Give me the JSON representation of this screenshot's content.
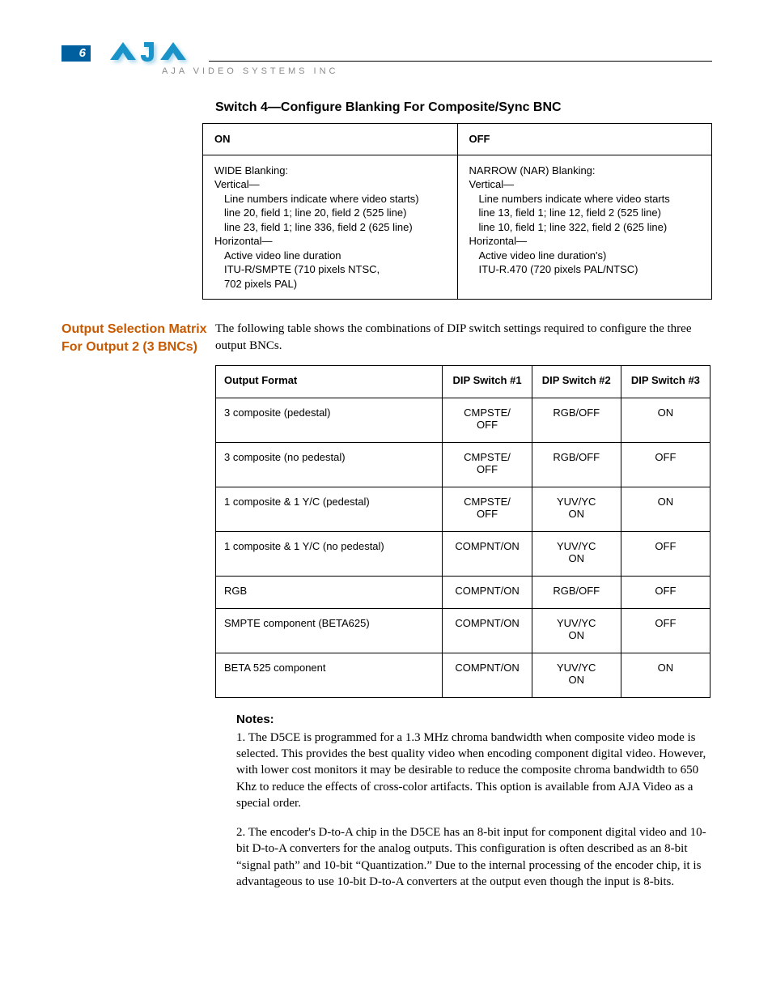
{
  "page_number": "6",
  "logo_tagline": "AJA VIDEO SYSTEMS INC",
  "logo_color": "#1a93c8",
  "section1": {
    "title": "Switch 4—Configure Blanking For Composite/Sync BNC",
    "headers": [
      "ON",
      "OFF"
    ],
    "on": {
      "l1": "WIDE Blanking:",
      "l2": "Vertical—",
      "l3": "Line numbers indicate where video starts)",
      "l4": "line 20, field 1; line 20, field 2 (525 line)",
      "l5": "line 23, field 1; line 336, field 2 (625 line)",
      "l6": "Horizontal—",
      "l7": "Active video line duration",
      "l8": "ITU-R/SMPTE (710 pixels NTSC,",
      "l9": "702 pixels PAL)"
    },
    "off": {
      "l1": "NARROW (NAR) Blanking:",
      "l2": "Vertical—",
      "l3": "Line numbers indicate where video starts",
      "l4": "line 13, field 1; line 12, field 2 (525 line)",
      "l5": "line 10, field 1; line 322, field 2 (625 line)",
      "l6": "Horizontal—",
      "l7": "Active video line duration's)",
      "l8": "ITU-R.470 (720 pixels PAL/NTSC)"
    }
  },
  "section2": {
    "side_heading": "Output Selection Matrix For Output 2 (3 BNCs)",
    "intro": "The following table shows the combinations of DIP switch settings required to configure the three output BNCs.",
    "headers": [
      "Output Format",
      "DIP Switch #1",
      "DIP Switch #2",
      "DIP Switch #3"
    ],
    "rows": [
      {
        "fmt": "3 composite (pedestal)",
        "s1a": "CMPSTE/",
        "s1b": "OFF",
        "s2a": "RGB/OFF",
        "s2b": "",
        "s3": "ON"
      },
      {
        "fmt": "3 composite (no pedestal)",
        "s1a": "CMPSTE/",
        "s1b": "OFF",
        "s2a": "RGB/OFF",
        "s2b": "",
        "s3": "OFF"
      },
      {
        "fmt": "1 composite & 1 Y/C (pedestal)",
        "s1a": "CMPSTE/",
        "s1b": "OFF",
        "s2a": "YUV/YC",
        "s2b": "ON",
        "s3": "ON"
      },
      {
        "fmt": "1 composite & 1 Y/C (no pedestal)",
        "s1a": "COMPNT/ON",
        "s1b": "",
        "s2a": "YUV/YC",
        "s2b": "ON",
        "s3": "OFF"
      },
      {
        "fmt": "RGB",
        "s1a": "COMPNT/ON",
        "s1b": "",
        "s2a": "RGB/OFF",
        "s2b": "",
        "s3": "OFF"
      },
      {
        "fmt": "SMPTE component (BETA625)",
        "s1a": "COMPNT/ON",
        "s1b": "",
        "s2a": "YUV/YC",
        "s2b": "ON",
        "s3": "OFF"
      },
      {
        "fmt": "BETA 525 component",
        "s1a": "COMPNT/ON",
        "s1b": "",
        "s2a": "YUV/YC",
        "s2b": "ON",
        "s3": "ON"
      }
    ]
  },
  "notes": {
    "title": "Notes:",
    "n1": "1. The D5CE is programmed for a 1.3 MHz chroma bandwidth when composite video mode is selected. This provides the best quality video when encoding component digital video. However, with lower cost monitors it may be desirable to reduce the composite chroma bandwidth to 650 Khz to reduce the effects of cross-color artifacts. This option is available from AJA Video as a special order.",
    "n2": "2. The encoder's D-to-A chip in the D5CE has an 8-bit input for component digital video and 10-bit D-to-A converters for the analog outputs. This configuration is often described as an 8-bit “signal path” and 10-bit “Quantization.” Due to the internal processing of the encoder chip, it is advantageous to use 10-bit D-to-A converters at the output even though the input is 8-bits."
  }
}
